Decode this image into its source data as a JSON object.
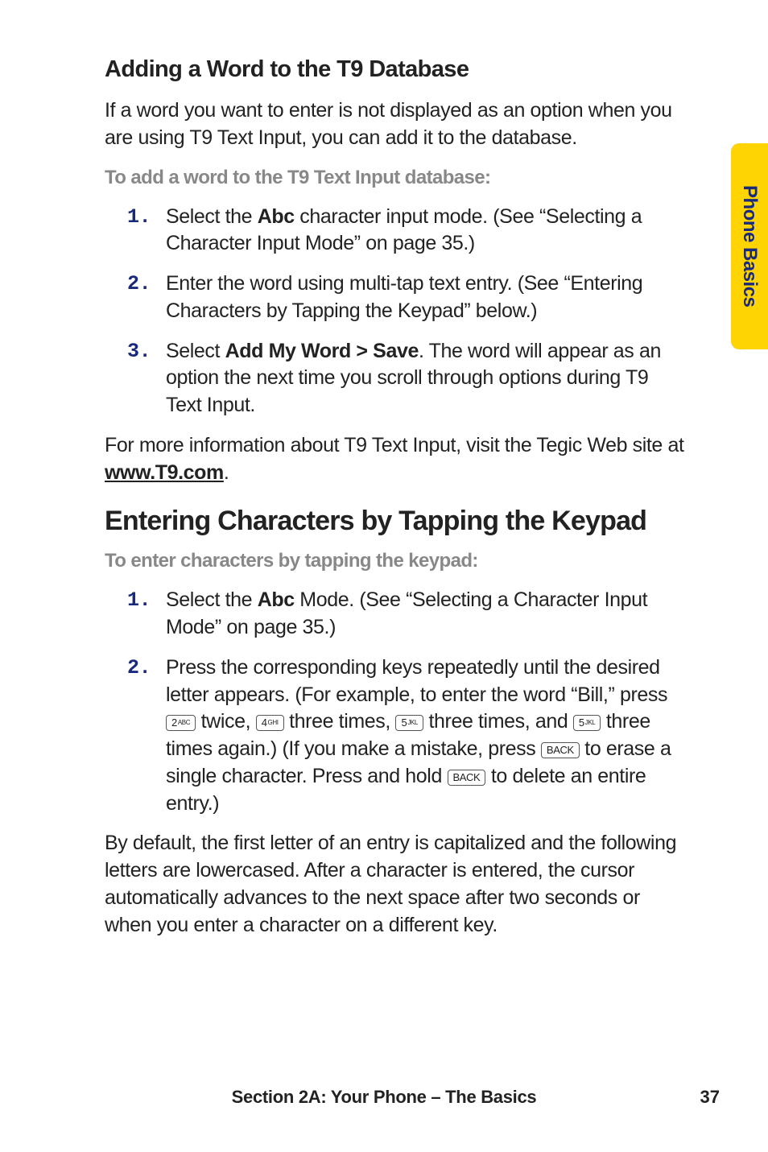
{
  "sideTab": {
    "label": "Phone Basics"
  },
  "section1": {
    "heading": "Adding a Word to the T9 Database",
    "intro": "If a word you want to enter is not displayed as an option when you are using T9 Text Input, you can add it to the database.",
    "lead": "To add a word to the T9 Text Input database:",
    "steps": [
      {
        "num": "1.",
        "pre": "Select the ",
        "bold": "Abc",
        "post": " character input mode. (See “Selecting a Character Input Mode” on page 35.)"
      },
      {
        "num": "2.",
        "pre": "Enter the word using multi-tap text entry. (See “Entering Characters by Tapping the Keypad” below.)",
        "bold": "",
        "post": ""
      },
      {
        "num": "3.",
        "pre": "Select ",
        "bold": "Add My Word > Save",
        "post": ". The word will appear as an option the next time you scroll through options during T9 Text Input."
      }
    ],
    "outro_pre": "For more information about T9 Text Input, visit the Tegic Web site at ",
    "outro_link": "www.T9.com",
    "outro_post": "."
  },
  "section2": {
    "heading": "Entering Characters by Tapping the Keypad",
    "lead": "To enter characters by tapping the keypad:",
    "step1": {
      "num": "1.",
      "pre": "Select the ",
      "bold": "Abc",
      "post": " Mode. (See “Selecting a Character Input Mode” on page 35.)"
    },
    "step2": {
      "num": "2.",
      "t1": "Press the corresponding keys repeatedly until the desired letter appears. (For example, to enter the word “Bill,” press ",
      "k1": "2",
      "k1sub": "ABC",
      "t2": " twice, ",
      "k2": "4",
      "k2sub": "GHI",
      "t3": " three times, ",
      "k3": "5",
      "k3sub": "JKL",
      "t4": " three times, and ",
      "k4": "5",
      "k4sub": "JKL",
      "t5": " three times again.) (If you make a mistake, press ",
      "k5": "BACK",
      "t6": " to erase a single character. Press and hold ",
      "k6": "BACK",
      "t7": " to delete an entire entry.)"
    },
    "outro": "By default, the first letter of an entry is capitalized and the following letters are lowercased. After a character is entered, the cursor automatically advances to the next space after two seconds or when you enter a character on a different key."
  },
  "footer": {
    "section": "Section 2A: Your Phone – The Basics",
    "page": "37"
  }
}
